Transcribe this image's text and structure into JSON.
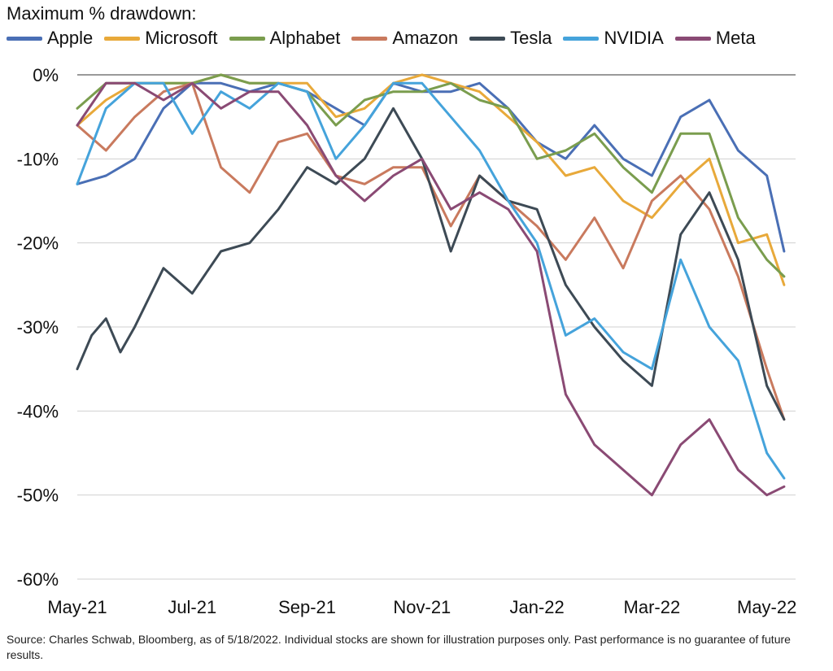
{
  "chart_data": {
    "type": "line",
    "title": "Maximum % drawdown:",
    "xlabel": "",
    "ylabel": "",
    "ylim": [
      -60,
      0
    ],
    "yticks": [
      0,
      -10,
      -20,
      -30,
      -40,
      -50,
      -60
    ],
    "ytick_labels": [
      "0%",
      "-10%",
      "-20%",
      "-30%",
      "-40%",
      "-50%",
      "-60%"
    ],
    "xtick_labels": [
      "May-21",
      "Jul-21",
      "Sep-21",
      "Nov-21",
      "Jan-22",
      "Mar-22",
      "May-22"
    ],
    "xtick_positions": [
      0,
      2,
      4,
      6,
      8,
      10,
      12
    ],
    "xlim": [
      0,
      12.5
    ],
    "grid": "horizontal",
    "legend_position": "top",
    "series": [
      {
        "name": "Apple",
        "color": "#4a6fb5",
        "x": [
          0,
          0.5,
          1,
          1.5,
          2,
          2.5,
          3,
          3.5,
          4,
          4.5,
          5,
          5.5,
          6,
          6.5,
          7,
          7.5,
          8,
          8.5,
          9,
          9.5,
          10,
          10.5,
          11,
          11.5,
          12,
          12.3
        ],
        "y": [
          -13,
          -12,
          -10,
          -4,
          -1,
          -1,
          -2,
          -1,
          -2,
          -4,
          -6,
          -1,
          -2,
          -2,
          -1,
          -4,
          -8,
          -10,
          -6,
          -10,
          -12,
          -5,
          -3,
          -9,
          -12,
          -21
        ]
      },
      {
        "name": "Microsoft",
        "color": "#e8a93a",
        "x": [
          0,
          0.5,
          1,
          1.5,
          2,
          2.5,
          3,
          3.5,
          4,
          4.5,
          5,
          5.5,
          6,
          6.5,
          7,
          7.5,
          8,
          8.5,
          9,
          9.5,
          10,
          10.5,
          11,
          11.5,
          12,
          12.3
        ],
        "y": [
          -6,
          -3,
          -1,
          -1,
          -1,
          0,
          -1,
          -1,
          -1,
          -5,
          -4,
          -1,
          0,
          -1,
          -2,
          -5,
          -8,
          -12,
          -11,
          -15,
          -17,
          -13,
          -10,
          -20,
          -19,
          -25
        ]
      },
      {
        "name": "Alphabet",
        "color": "#7a9d4e",
        "x": [
          0,
          0.5,
          1,
          1.5,
          2,
          2.5,
          3,
          3.5,
          4,
          4.5,
          5,
          5.5,
          6,
          6.5,
          7,
          7.5,
          8,
          8.5,
          9,
          9.5,
          10,
          10.5,
          11,
          11.5,
          12,
          12.3
        ],
        "y": [
          -4,
          -1,
          -1,
          -1,
          -1,
          0,
          -1,
          -1,
          -2,
          -6,
          -3,
          -2,
          -2,
          -1,
          -3,
          -4,
          -10,
          -9,
          -7,
          -11,
          -14,
          -7,
          -7,
          -17,
          -22,
          -24
        ]
      },
      {
        "name": "Amazon",
        "color": "#c97a5e",
        "x": [
          0,
          0.5,
          1,
          1.5,
          2,
          2.5,
          3,
          3.5,
          4,
          4.5,
          5,
          5.5,
          6,
          6.5,
          7,
          7.5,
          8,
          8.5,
          9,
          9.5,
          10,
          10.5,
          11,
          11.5,
          12,
          12.3
        ],
        "y": [
          -6,
          -9,
          -5,
          -2,
          -1,
          -11,
          -14,
          -8,
          -7,
          -12,
          -13,
          -11,
          -11,
          -18,
          -12,
          -15,
          -18,
          -22,
          -17,
          -23,
          -15,
          -12,
          -16,
          -24,
          -35,
          -41
        ]
      },
      {
        "name": "Tesla",
        "color": "#3d4a55",
        "x": [
          0,
          0.25,
          0.5,
          0.75,
          1,
          1.5,
          2,
          2.5,
          3,
          3.5,
          4,
          4.5,
          5,
          5.5,
          6,
          6.5,
          7,
          7.5,
          8,
          8.5,
          9,
          9.5,
          10,
          10.5,
          11,
          11.5,
          12,
          12.3
        ],
        "y": [
          -35,
          -31,
          -29,
          -33,
          -30,
          -23,
          -26,
          -21,
          -20,
          -16,
          -11,
          -13,
          -10,
          -4,
          -10,
          -21,
          -12,
          -15,
          -16,
          -25,
          -30,
          -34,
          -37,
          -19,
          -14,
          -22,
          -37,
          -41
        ]
      },
      {
        "name": "NVIDIA",
        "color": "#45a3db",
        "x": [
          0,
          0.5,
          1,
          1.5,
          2,
          2.5,
          3,
          3.5,
          4,
          4.5,
          5,
          5.5,
          6,
          6.5,
          7,
          7.5,
          8,
          8.5,
          9,
          9.5,
          10,
          10.5,
          11,
          11.5,
          12,
          12.3
        ],
        "y": [
          -13,
          -4,
          -1,
          -1,
          -7,
          -2,
          -4,
          -1,
          -2,
          -10,
          -6,
          -1,
          -1,
          -5,
          -9,
          -15,
          -20,
          -31,
          -29,
          -33,
          -35,
          -22,
          -30,
          -34,
          -45,
          -48
        ]
      },
      {
        "name": "Meta",
        "color": "#8a4a74",
        "x": [
          0,
          0.5,
          1,
          1.5,
          2,
          2.5,
          3,
          3.5,
          4,
          4.5,
          5,
          5.5,
          6,
          6.5,
          7,
          7.5,
          8,
          8.5,
          9,
          9.5,
          10,
          10.5,
          11,
          11.5,
          12,
          12.3
        ],
        "y": [
          -6,
          -1,
          -1,
          -3,
          -1,
          -4,
          -2,
          -2,
          -6,
          -12,
          -15,
          -12,
          -10,
          -16,
          -14,
          -16,
          -21,
          -38,
          -44,
          -47,
          -50,
          -44,
          -41,
          -47,
          -50,
          -49
        ]
      }
    ]
  },
  "legend": [
    {
      "label": "Apple",
      "color": "#4a6fb5"
    },
    {
      "label": "Microsoft",
      "color": "#e8a93a"
    },
    {
      "label": "Alphabet",
      "color": "#7a9d4e"
    },
    {
      "label": "Amazon",
      "color": "#c97a5e"
    },
    {
      "label": "Tesla",
      "color": "#3d4a55"
    },
    {
      "label": "NVIDIA",
      "color": "#45a3db"
    },
    {
      "label": "Meta",
      "color": "#8a4a74"
    }
  ],
  "source_note": "Source: Charles Schwab, Bloomberg, as of 5/18/2022. Individual stocks are shown for illustration purposes only. Past performance is no guarantee of future results."
}
